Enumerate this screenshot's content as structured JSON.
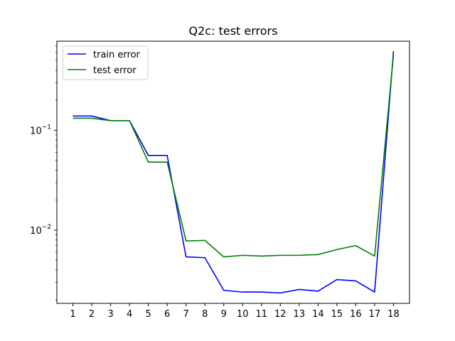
{
  "chart_data": {
    "type": "line",
    "title": "Q2c: test errors",
    "xlabel": "",
    "ylabel": "",
    "y_scale": "log",
    "x": [
      1,
      2,
      3,
      4,
      5,
      6,
      7,
      8,
      9,
      10,
      11,
      12,
      13,
      14,
      15,
      16,
      17,
      18
    ],
    "x_tick_labels": [
      "1",
      "2",
      "3",
      "4",
      "5",
      "6",
      "7",
      "8",
      "9",
      "10",
      "11",
      "12",
      "13",
      "14",
      "15",
      "16",
      "17",
      "18"
    ],
    "y_ticks": [
      0.01,
      0.1
    ],
    "y_tick_labels": [
      {
        "base": "10",
        "exp": "−2"
      },
      {
        "base": "10",
        "exp": "−1"
      }
    ],
    "xlim": [
      0.15,
      18.85
    ],
    "ylim": [
      0.00185,
      0.78
    ],
    "grid": false,
    "legend_position": "top-left",
    "series": [
      {
        "name": "train error",
        "color": "#0000ff",
        "values": [
          0.139,
          0.139,
          0.125,
          0.125,
          0.056,
          0.056,
          0.0054,
          0.0053,
          0.0025,
          0.0024,
          0.0024,
          0.00235,
          0.00255,
          0.00245,
          0.0032,
          0.0031,
          0.0024,
          0.62
        ]
      },
      {
        "name": "test error",
        "color": "#008000",
        "values": [
          0.132,
          0.132,
          0.125,
          0.125,
          0.048,
          0.048,
          0.0078,
          0.0079,
          0.0054,
          0.0056,
          0.0055,
          0.0056,
          0.0056,
          0.0057,
          0.0064,
          0.007,
          0.0055,
          0.57
        ]
      }
    ]
  }
}
